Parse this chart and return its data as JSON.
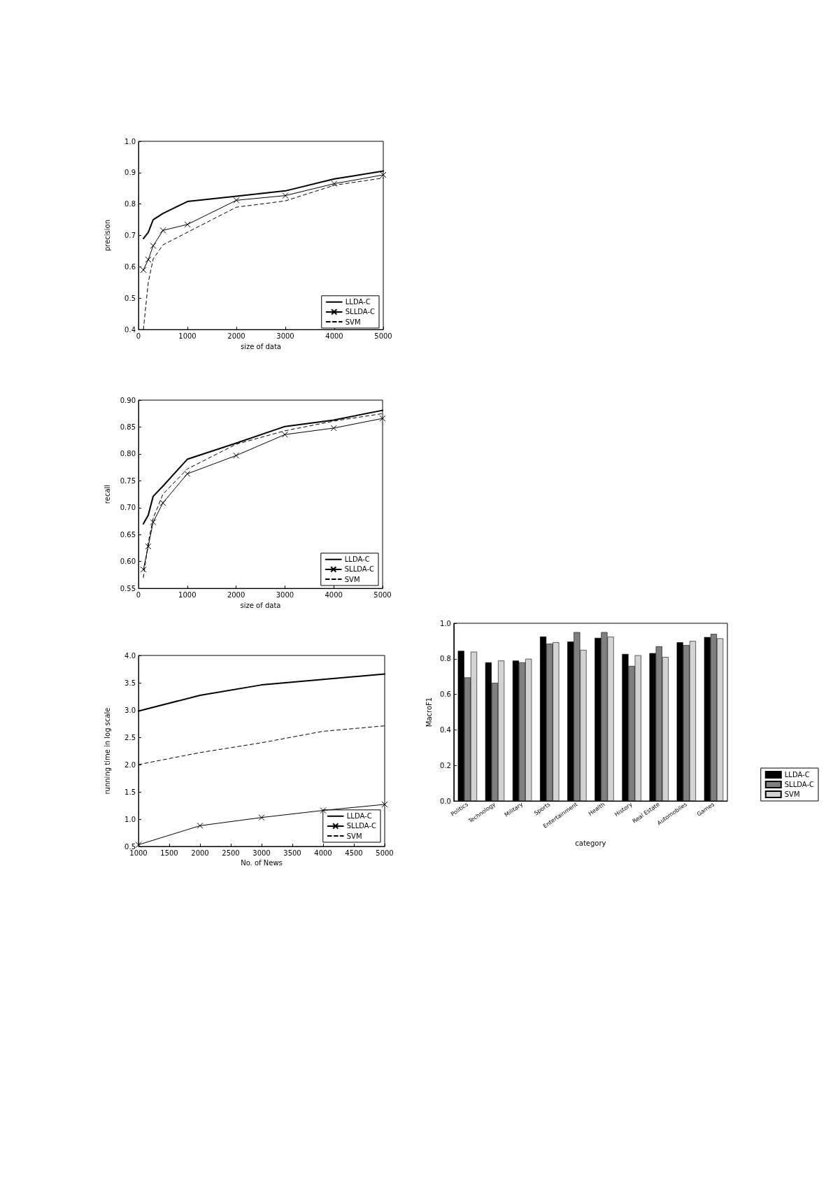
{
  "chart_data": [
    {
      "type": "line",
      "xlabel": "size of data",
      "ylabel": "precision",
      "x": [
        100,
        200,
        300,
        500,
        1000,
        2000,
        3000,
        4000,
        5000
      ],
      "series": [
        {
          "name": "LLDA-C",
          "color": "#000000",
          "marker": "none",
          "line_style": "solid",
          "values": [
            0.69,
            0.71,
            0.75,
            0.77,
            0.808,
            0.825,
            0.842,
            0.88,
            0.905
          ]
        },
        {
          "name": "SLLDA-C",
          "color": "#000000",
          "marker": "cross",
          "line_style": "solid",
          "values": [
            0.59,
            0.623,
            0.667,
            0.716,
            0.735,
            0.812,
            0.827,
            0.865,
            0.893
          ]
        },
        {
          "name": "SVM",
          "color": "#000000",
          "marker": "none",
          "line_style": "dashed",
          "values": [
            0.4,
            0.55,
            0.625,
            0.67,
            0.71,
            0.79,
            0.81,
            0.86,
            0.883
          ]
        }
      ],
      "xlim": [
        0,
        5000
      ],
      "xticks": [
        0,
        1000,
        2000,
        3000,
        4000,
        5000
      ],
      "ylim": [
        0.4,
        1.0
      ],
      "yticks": [
        0.4,
        0.5,
        0.6,
        0.7,
        0.8,
        0.9,
        {
          "value": 1.0,
          "label": "1.0"
        }
      ],
      "grid": false,
      "legend": "bottom right"
    },
    {
      "type": "line",
      "xlabel": "size of data",
      "ylabel": "recall",
      "x": [
        100,
        200,
        300,
        500,
        1000,
        2000,
        3000,
        4000,
        5000
      ],
      "series": [
        {
          "name": "LLDA-C",
          "color": "#000000",
          "marker": "none",
          "line_style": "solid",
          "values": [
            0.67,
            0.686,
            0.721,
            0.74,
            0.79,
            0.82,
            0.851,
            0.863,
            0.881
          ]
        },
        {
          "name": "SLLDA-C",
          "color": "#000000",
          "marker": "cross",
          "line_style": "solid",
          "values": [
            0.585,
            0.628,
            0.673,
            0.709,
            0.763,
            0.797,
            0.836,
            0.848,
            0.866
          ]
        },
        {
          "name": "SVM",
          "color": "#000000",
          "marker": "none",
          "line_style": "dashed",
          "values": [
            0.57,
            0.635,
            0.68,
            0.725,
            0.772,
            0.818,
            0.843,
            0.861,
            0.875
          ]
        }
      ],
      "xlim": [
        0,
        5000
      ],
      "xticks": [
        0,
        1000,
        2000,
        3000,
        4000,
        5000
      ],
      "ylim": [
        0.55,
        0.9
      ],
      "yticks": [
        0.55,
        {
          "value": 0.6,
          "label": "0.60"
        },
        0.65,
        {
          "value": 0.7,
          "label": "0.70"
        },
        0.75,
        {
          "value": 0.8,
          "label": "0.80"
        },
        0.85,
        {
          "value": 0.9,
          "label": "0.90"
        }
      ],
      "grid": false,
      "legend": "bottom right"
    },
    {
      "type": "line",
      "xlabel": "No. of News",
      "ylabel": "running time in log scale",
      "x": [
        1000,
        2000,
        3000,
        4000,
        5000
      ],
      "series": [
        {
          "name": "LLDA-C",
          "color": "#000000",
          "marker": "none",
          "line_style": "solid",
          "values": [
            2.98,
            3.27,
            3.46,
            3.56,
            3.66
          ]
        },
        {
          "name": "SLLDA-C",
          "color": "#000000",
          "marker": "cross",
          "line_style": "solid",
          "values": [
            0.53,
            0.88,
            1.03,
            1.16,
            1.27
          ]
        },
        {
          "name": "SVM",
          "color": "#000000",
          "marker": "none",
          "line_style": "dashed",
          "values": [
            2.0,
            2.22,
            2.4,
            2.61,
            2.71
          ]
        }
      ],
      "xlim": [
        1000,
        5000
      ],
      "xticks": [
        1000,
        1500,
        2000,
        2500,
        3000,
        3500,
        4000,
        4500,
        5000
      ],
      "ylim": [
        0.5,
        4.0
      ],
      "yticks": [
        0.5,
        {
          "value": 1,
          "label": "1.0"
        },
        1.5,
        {
          "value": 2,
          "label": "2.0"
        },
        2.5,
        {
          "value": 3,
          "label": "3.0"
        },
        3.5,
        {
          "value": 4,
          "label": "4.0"
        }
      ],
      "grid": false,
      "legend": "bottom right"
    },
    {
      "type": "bar",
      "xlabel": "category",
      "ylabel": "MacroF1",
      "categories": [
        "Politics",
        "Technology",
        "Military",
        "Sports",
        "Entertainment",
        "Health",
        "History",
        "Real Estate",
        "Automobiles",
        "Games"
      ],
      "series": [
        {
          "name": "LLDA-C",
          "color": "#000000",
          "values": [
            0.845,
            0.78,
            0.79,
            0.925,
            0.897,
            0.918,
            0.827,
            0.832,
            0.893,
            0.922
          ]
        },
        {
          "name": "SLLDA-C",
          "color": "#808080",
          "values": [
            0.695,
            0.665,
            0.78,
            0.885,
            0.95,
            0.95,
            0.76,
            0.87,
            0.877,
            0.94
          ]
        },
        {
          "name": "SVM",
          "color": "#d3d3d3",
          "values": [
            0.84,
            0.79,
            0.8,
            0.893,
            0.85,
            0.924,
            0.82,
            0.81,
            0.9,
            0.915
          ]
        }
      ],
      "ylim": [
        0,
        1.0
      ],
      "yticks": [
        {
          "value": 0,
          "label": "0.0"
        },
        0.2,
        0.4,
        0.6,
        0.8,
        {
          "value": 1.0,
          "label": "1.0"
        }
      ],
      "grid": false,
      "legend": "bottom right"
    }
  ]
}
